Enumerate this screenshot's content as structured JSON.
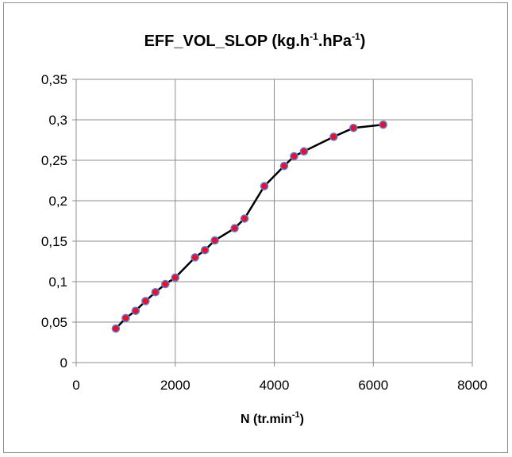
{
  "chart_data": {
    "type": "scatter",
    "title": "EFF_VOL_SLOP (kg.h-1.hPa-1)",
    "title_parts": {
      "main": "EFF_VOL_SLOP (kg.h",
      "sup1": "-1",
      "mid": ".hPa",
      "sup2": "-1",
      "end": ")"
    },
    "xlabel": "N (tr.min-1)",
    "xlabel_parts": {
      "main": "N (tr.min",
      "sup": "-1",
      "end": ")"
    },
    "ylabel": "",
    "xlim": [
      0,
      8000
    ],
    "ylim": [
      0,
      0.35
    ],
    "xticks": [
      "0",
      "2000",
      "4000",
      "6000",
      "8000"
    ],
    "yticks": [
      "0",
      "0,05",
      "0,1",
      "0,15",
      "0,2",
      "0,25",
      "0,3",
      "0,35"
    ],
    "grid": true,
    "legend": "none",
    "series": [
      {
        "line_color": "#000000",
        "marker_fill": "#e8102a",
        "marker_edge": "#5b7bd5",
        "x": [
          800,
          1000,
          1200,
          1400,
          1600,
          1800,
          2000,
          2400,
          2600,
          2800,
          3200,
          3400,
          3800,
          4200,
          4400,
          4600,
          5200,
          5600,
          6200
        ],
        "y": [
          0.042,
          0.055,
          0.064,
          0.076,
          0.087,
          0.097,
          0.105,
          0.13,
          0.139,
          0.151,
          0.166,
          0.178,
          0.218,
          0.243,
          0.255,
          0.261,
          0.279,
          0.29,
          0.294
        ]
      }
    ]
  }
}
